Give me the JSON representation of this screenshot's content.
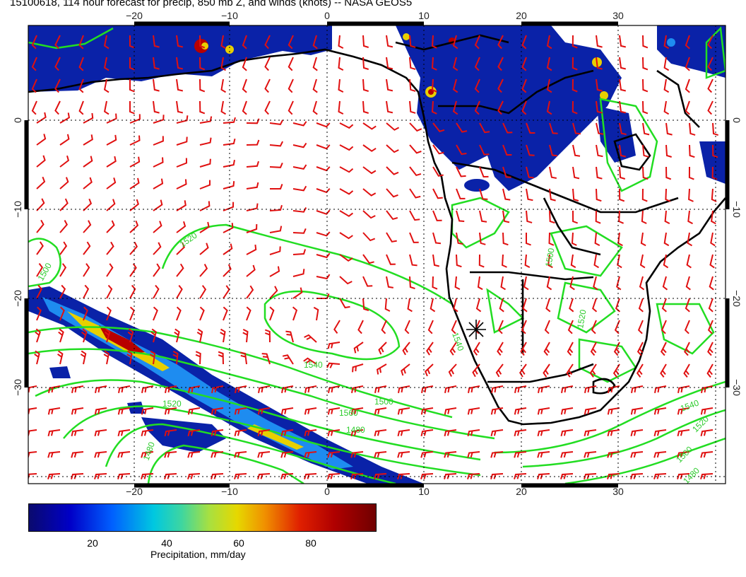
{
  "title": "15100618, 114 hour forecast for precip, 850 mb Z, and winds (knots) -- NASA GEOS5",
  "map": {
    "lon_ticks_top": [
      "−20",
      "−10",
      "0",
      "10",
      "20",
      "30"
    ],
    "lon_ticks_bottom": [
      "−20",
      "−10",
      "0",
      "10",
      "20",
      "30"
    ],
    "lat_ticks_left": [
      "0",
      "−10",
      "−20",
      "−30"
    ],
    "lat_ticks_right": [
      "0",
      "−10",
      "−20",
      "−30"
    ],
    "contour_labels": [
      "1500",
      "1520",
      "1540",
      "1480",
      "1540",
      "1560",
      "1520",
      "1500",
      "1520",
      "1500",
      "1480",
      "1540",
      "1520",
      "1500",
      "1480"
    ],
    "contour_color": "#22dd22",
    "wind_barb_color": "#e01010",
    "coastline_color": "#000000"
  },
  "colorbar": {
    "ticks": [
      "20",
      "40",
      "60",
      "80"
    ],
    "label": "Precipitation, mm/day"
  }
}
